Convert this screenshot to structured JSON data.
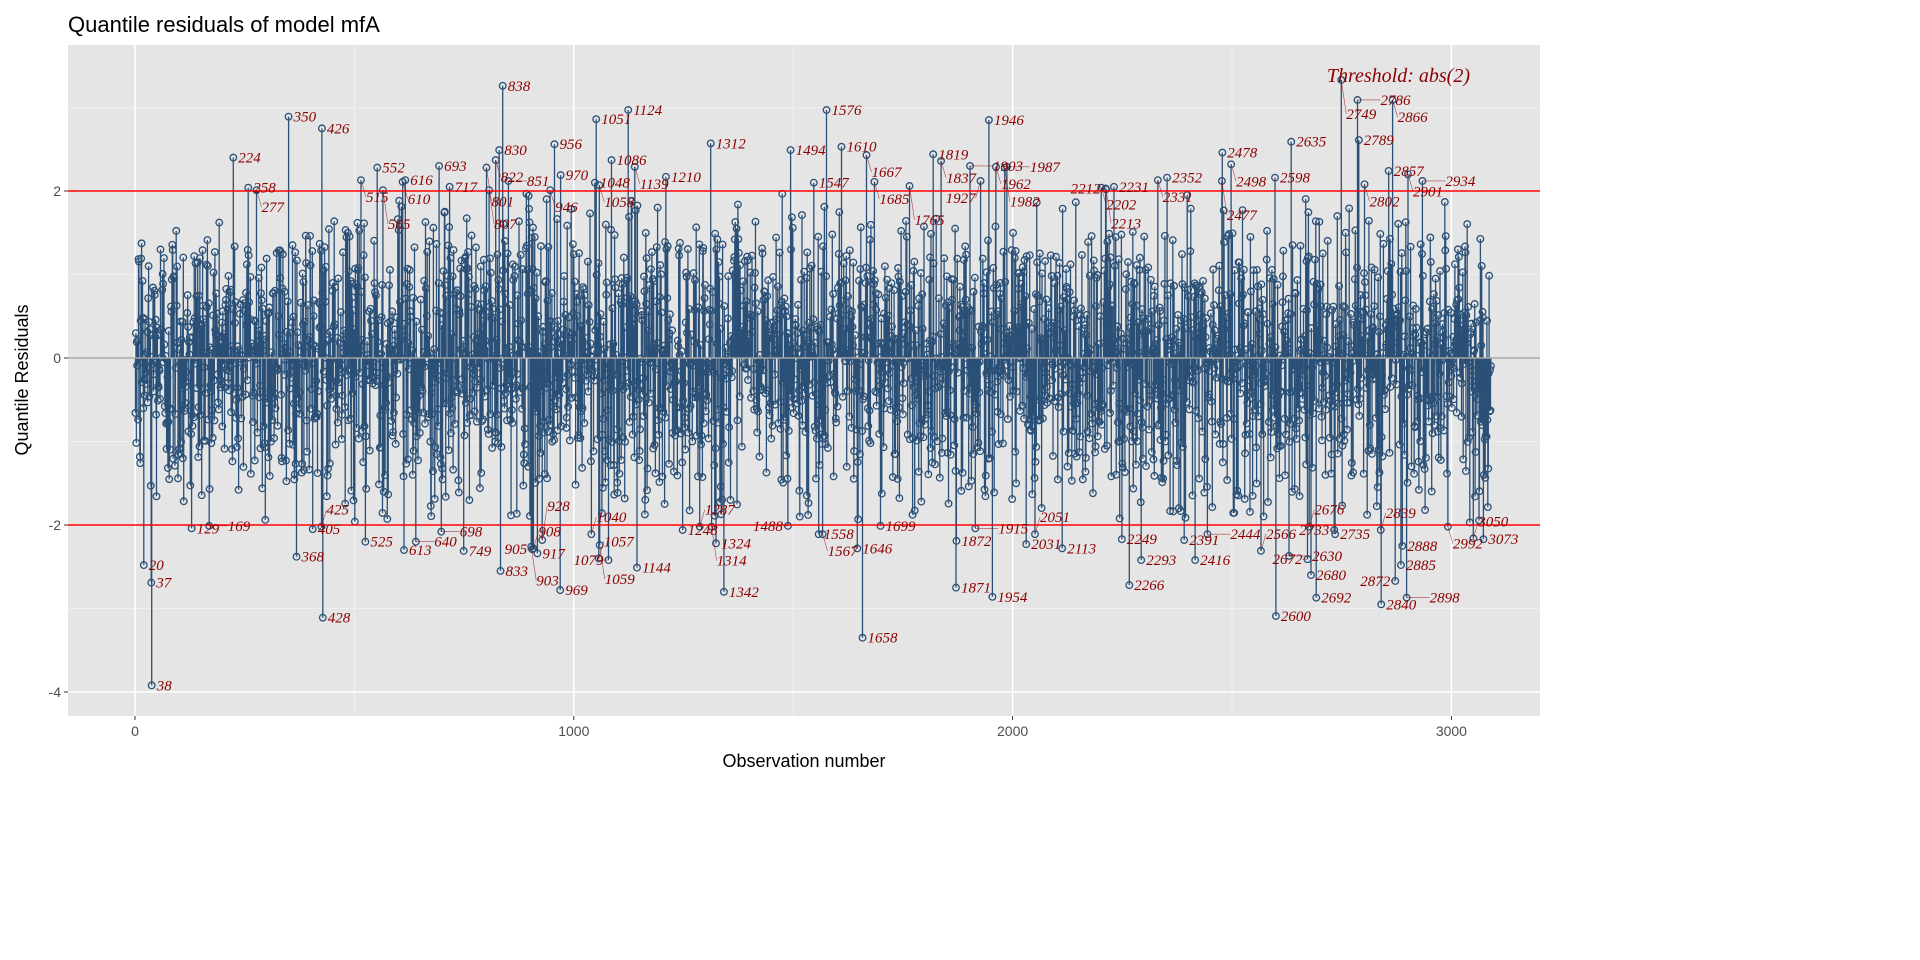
{
  "chart_data": {
    "type": "scatter",
    "style": "lollipop",
    "title": "Quantile residuals of model mfA",
    "xlabel": "Observation number",
    "ylabel": "Quantile Residuals",
    "xlim": [
      -150,
      3250
    ],
    "ylim": [
      -4.2,
      3.8
    ],
    "x_ticks": [
      0,
      1000,
      2000,
      3000
    ],
    "x_tick_labels": [
      "0",
      "1000",
      "2000",
      "3000"
    ],
    "y_ticks": [
      -4,
      -2,
      0,
      2
    ],
    "y_tick_labels": [
      "-4",
      "-2",
      "0",
      "2"
    ],
    "grid": true,
    "n_observations": 3090,
    "threshold": 2,
    "threshold_label": "Threshold: abs(2)",
    "colors": {
      "points": "#2b5077",
      "threshold": "#ff0000",
      "labels": "#8b0000",
      "zero_line": "#a6a6a6",
      "panel": "#e5e5e5"
    },
    "labeled_points": [
      [
        224,
        2.4
      ],
      [
        258,
        2.04
      ],
      [
        277,
        2.01
      ],
      [
        350,
        2.89
      ],
      [
        426,
        2.75
      ],
      [
        515,
        2.13
      ],
      [
        552,
        2.28
      ],
      [
        565,
        2.01
      ],
      [
        610,
        2.11
      ],
      [
        616,
        2.13
      ],
      [
        693,
        2.3
      ],
      [
        717,
        2.05
      ],
      [
        801,
        2.28
      ],
      [
        807,
        2.01
      ],
      [
        822,
        2.37
      ],
      [
        830,
        2.49
      ],
      [
        838,
        3.26
      ],
      [
        851,
        2.12
      ],
      [
        946,
        2.01
      ],
      [
        956,
        2.56
      ],
      [
        970,
        2.19
      ],
      [
        1048,
        2.1
      ],
      [
        1051,
        2.86
      ],
      [
        1058,
        2.07
      ],
      [
        1086,
        2.37
      ],
      [
        1124,
        2.97
      ],
      [
        1139,
        2.29
      ],
      [
        1210,
        2.17
      ],
      [
        1312,
        2.57
      ],
      [
        1494,
        2.49
      ],
      [
        1547,
        2.1
      ],
      [
        1576,
        2.97
      ],
      [
        1610,
        2.53
      ],
      [
        1667,
        2.43
      ],
      [
        1685,
        2.11
      ],
      [
        1765,
        2.06
      ],
      [
        1819,
        2.44
      ],
      [
        1837,
        2.36
      ],
      [
        1903,
        2.3
      ],
      [
        1927,
        2.12
      ],
      [
        1946,
        2.85
      ],
      [
        1962,
        2.29
      ],
      [
        1982,
        2.28
      ],
      [
        1987,
        2.29
      ],
      [
        2202,
        2.04
      ],
      [
        2212,
        2.03
      ],
      [
        2213,
        2.02
      ],
      [
        2231,
        2.05
      ],
      [
        2331,
        2.13
      ],
      [
        2352,
        2.16
      ],
      [
        2477,
        2.12
      ],
      [
        2478,
        2.46
      ],
      [
        2498,
        2.32
      ],
      [
        2598,
        2.16
      ],
      [
        2635,
        2.59
      ],
      [
        2749,
        3.33
      ],
      [
        2786,
        3.09
      ],
      [
        2789,
        2.61
      ],
      [
        2802,
        2.08
      ],
      [
        2857,
        2.24
      ],
      [
        2866,
        3.09
      ],
      [
        2901,
        2.2
      ],
      [
        2934,
        2.12
      ],
      [
        20,
        -2.48
      ],
      [
        37,
        -2.69
      ],
      [
        38,
        -3.92
      ],
      [
        129,
        -2.04
      ],
      [
        169,
        -2.01
      ],
      [
        368,
        -2.38
      ],
      [
        405,
        -2.05
      ],
      [
        425,
        -2.02
      ],
      [
        428,
        -3.11
      ],
      [
        525,
        -2.2
      ],
      [
        613,
        -2.3
      ],
      [
        640,
        -2.2
      ],
      [
        698,
        -2.08
      ],
      [
        749,
        -2.31
      ],
      [
        833,
        -2.55
      ],
      [
        903,
        -2.26
      ],
      [
        905,
        -2.29
      ],
      [
        908,
        -2.28
      ],
      [
        917,
        -2.34
      ],
      [
        928,
        -2.18
      ],
      [
        969,
        -2.78
      ],
      [
        1040,
        -2.11
      ],
      [
        1057,
        -2.4
      ],
      [
        1059,
        -2.24
      ],
      [
        1079,
        -2.42
      ],
      [
        1144,
        -2.51
      ],
      [
        1248,
        -2.06
      ],
      [
        1287,
        -2.02
      ],
      [
        1314,
        -2.02
      ],
      [
        1324,
        -2.22
      ],
      [
        1342,
        -2.8
      ],
      [
        1488,
        -2.01
      ],
      [
        1558,
        -2.11
      ],
      [
        1567,
        -2.11
      ],
      [
        1646,
        -2.28
      ],
      [
        1658,
        -3.35
      ],
      [
        1699,
        -2.01
      ],
      [
        1871,
        -2.75
      ],
      [
        1872,
        -2.19
      ],
      [
        1915,
        -2.04
      ],
      [
        1954,
        -2.86
      ],
      [
        2031,
        -2.23
      ],
      [
        2051,
        -2.11
      ],
      [
        2113,
        -2.28
      ],
      [
        2249,
        -2.17
      ],
      [
        2266,
        -2.72
      ],
      [
        2293,
        -2.42
      ],
      [
        2391,
        -2.18
      ],
      [
        2416,
        -2.42
      ],
      [
        2444,
        -2.11
      ],
      [
        2566,
        -2.31
      ],
      [
        2600,
        -3.09
      ],
      [
        2630,
        -2.37
      ],
      [
        2672,
        -2.41
      ],
      [
        2676,
        -2.02
      ],
      [
        2680,
        -2.6
      ],
      [
        2692,
        -2.87
      ],
      [
        2733,
        -2.06
      ],
      [
        2735,
        -2.11
      ],
      [
        2839,
        -2.06
      ],
      [
        2840,
        -2.95
      ],
      [
        2872,
        -2.67
      ],
      [
        2885,
        -2.48
      ],
      [
        2888,
        -2.25
      ],
      [
        2898,
        -2.87
      ],
      [
        2992,
        -2.02
      ],
      [
        3050,
        -2.16
      ],
      [
        3073,
        -2.17
      ]
    ]
  }
}
